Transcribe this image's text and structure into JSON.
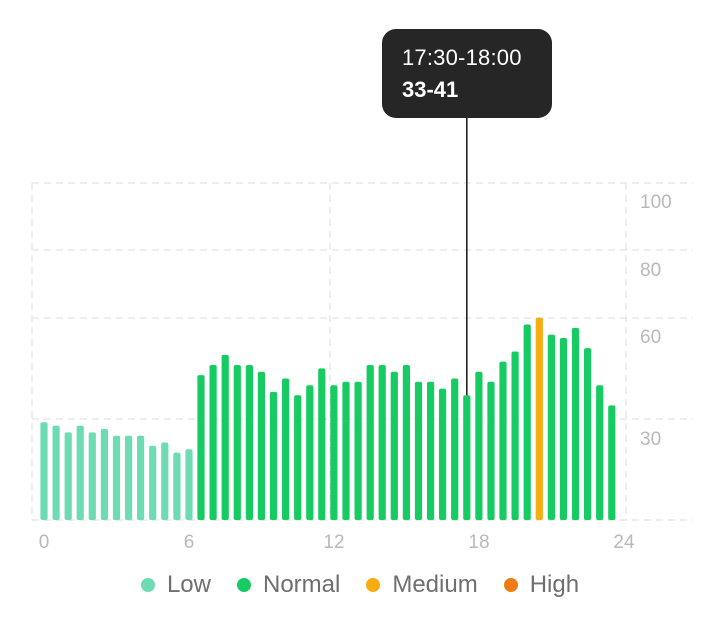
{
  "colors": {
    "low": "#6ddcb3",
    "normal": "#17cb63",
    "medium": "#f5ad0f",
    "high": "#ef7b12",
    "tooltip_bg": "#262626",
    "grid": "#e3e3e3"
  },
  "tooltip": {
    "time_range": "17:30-18:00",
    "value_range": "33-41"
  },
  "legend": [
    {
      "label": "Low",
      "color": "#6ddcb3"
    },
    {
      "label": "Normal",
      "color": "#17cb63"
    },
    {
      "label": "Medium",
      "color": "#f5ad0f"
    },
    {
      "label": "High",
      "color": "#ef7b12"
    }
  ],
  "chart_data": {
    "type": "bar",
    "x_ticks": [
      "0",
      "6",
      "12",
      "18",
      "24"
    ],
    "y_ticks": [
      "100",
      "80",
      "60",
      "30"
    ],
    "xlim": [
      0,
      24
    ],
    "grid": true,
    "legend_position": "bottom",
    "selected_index": 35,
    "values": [
      29,
      28,
      26,
      28,
      26,
      27,
      25,
      25,
      25,
      22,
      23,
      20,
      21,
      43,
      46,
      49,
      46,
      46,
      44,
      38,
      42,
      37,
      40,
      45,
      40,
      41,
      41,
      46,
      46,
      44,
      46,
      41,
      41,
      39,
      42,
      37,
      44,
      41,
      47,
      50,
      58,
      60,
      55,
      54,
      57,
      51,
      40,
      34
    ],
    "levels": [
      "low",
      "low",
      "low",
      "low",
      "low",
      "low",
      "low",
      "low",
      "low",
      "low",
      "low",
      "low",
      "low",
      "normal",
      "normal",
      "normal",
      "normal",
      "normal",
      "normal",
      "normal",
      "normal",
      "normal",
      "normal",
      "normal",
      "normal",
      "normal",
      "normal",
      "normal",
      "normal",
      "normal",
      "normal",
      "normal",
      "normal",
      "normal",
      "normal",
      "normal",
      "normal",
      "normal",
      "normal",
      "normal",
      "normal",
      "medium",
      "normal",
      "normal",
      "normal",
      "normal",
      "normal",
      "normal"
    ]
  }
}
